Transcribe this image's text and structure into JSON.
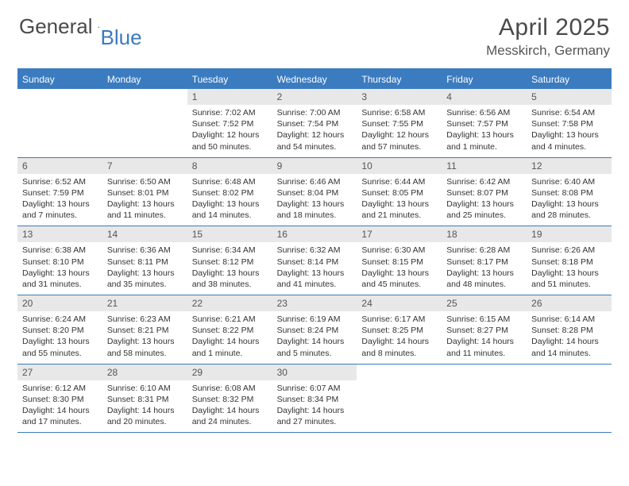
{
  "logo": {
    "text1": "General",
    "text2": "Blue"
  },
  "title": "April 2025",
  "location": "Messkirch, Germany",
  "colors": {
    "brand_blue": "#3b7bbf",
    "header_text": "#4a4a4a",
    "daynum_bg": "#e8e8e8",
    "text": "#333333",
    "bg": "#ffffff"
  },
  "weekdays": [
    "Sunday",
    "Monday",
    "Tuesday",
    "Wednesday",
    "Thursday",
    "Friday",
    "Saturday"
  ],
  "weeks": [
    [
      null,
      null,
      {
        "n": "1",
        "sr": "7:02 AM",
        "ss": "7:52 PM",
        "dl": "12 hours and 50 minutes."
      },
      {
        "n": "2",
        "sr": "7:00 AM",
        "ss": "7:54 PM",
        "dl": "12 hours and 54 minutes."
      },
      {
        "n": "3",
        "sr": "6:58 AM",
        "ss": "7:55 PM",
        "dl": "12 hours and 57 minutes."
      },
      {
        "n": "4",
        "sr": "6:56 AM",
        "ss": "7:57 PM",
        "dl": "13 hours and 1 minute."
      },
      {
        "n": "5",
        "sr": "6:54 AM",
        "ss": "7:58 PM",
        "dl": "13 hours and 4 minutes."
      }
    ],
    [
      {
        "n": "6",
        "sr": "6:52 AM",
        "ss": "7:59 PM",
        "dl": "13 hours and 7 minutes."
      },
      {
        "n": "7",
        "sr": "6:50 AM",
        "ss": "8:01 PM",
        "dl": "13 hours and 11 minutes."
      },
      {
        "n": "8",
        "sr": "6:48 AM",
        "ss": "8:02 PM",
        "dl": "13 hours and 14 minutes."
      },
      {
        "n": "9",
        "sr": "6:46 AM",
        "ss": "8:04 PM",
        "dl": "13 hours and 18 minutes."
      },
      {
        "n": "10",
        "sr": "6:44 AM",
        "ss": "8:05 PM",
        "dl": "13 hours and 21 minutes."
      },
      {
        "n": "11",
        "sr": "6:42 AM",
        "ss": "8:07 PM",
        "dl": "13 hours and 25 minutes."
      },
      {
        "n": "12",
        "sr": "6:40 AM",
        "ss": "8:08 PM",
        "dl": "13 hours and 28 minutes."
      }
    ],
    [
      {
        "n": "13",
        "sr": "6:38 AM",
        "ss": "8:10 PM",
        "dl": "13 hours and 31 minutes."
      },
      {
        "n": "14",
        "sr": "6:36 AM",
        "ss": "8:11 PM",
        "dl": "13 hours and 35 minutes."
      },
      {
        "n": "15",
        "sr": "6:34 AM",
        "ss": "8:12 PM",
        "dl": "13 hours and 38 minutes."
      },
      {
        "n": "16",
        "sr": "6:32 AM",
        "ss": "8:14 PM",
        "dl": "13 hours and 41 minutes."
      },
      {
        "n": "17",
        "sr": "6:30 AM",
        "ss": "8:15 PM",
        "dl": "13 hours and 45 minutes."
      },
      {
        "n": "18",
        "sr": "6:28 AM",
        "ss": "8:17 PM",
        "dl": "13 hours and 48 minutes."
      },
      {
        "n": "19",
        "sr": "6:26 AM",
        "ss": "8:18 PM",
        "dl": "13 hours and 51 minutes."
      }
    ],
    [
      {
        "n": "20",
        "sr": "6:24 AM",
        "ss": "8:20 PM",
        "dl": "13 hours and 55 minutes."
      },
      {
        "n": "21",
        "sr": "6:23 AM",
        "ss": "8:21 PM",
        "dl": "13 hours and 58 minutes."
      },
      {
        "n": "22",
        "sr": "6:21 AM",
        "ss": "8:22 PM",
        "dl": "14 hours and 1 minute."
      },
      {
        "n": "23",
        "sr": "6:19 AM",
        "ss": "8:24 PM",
        "dl": "14 hours and 5 minutes."
      },
      {
        "n": "24",
        "sr": "6:17 AM",
        "ss": "8:25 PM",
        "dl": "14 hours and 8 minutes."
      },
      {
        "n": "25",
        "sr": "6:15 AM",
        "ss": "8:27 PM",
        "dl": "14 hours and 11 minutes."
      },
      {
        "n": "26",
        "sr": "6:14 AM",
        "ss": "8:28 PM",
        "dl": "14 hours and 14 minutes."
      }
    ],
    [
      {
        "n": "27",
        "sr": "6:12 AM",
        "ss": "8:30 PM",
        "dl": "14 hours and 17 minutes."
      },
      {
        "n": "28",
        "sr": "6:10 AM",
        "ss": "8:31 PM",
        "dl": "14 hours and 20 minutes."
      },
      {
        "n": "29",
        "sr": "6:08 AM",
        "ss": "8:32 PM",
        "dl": "14 hours and 24 minutes."
      },
      {
        "n": "30",
        "sr": "6:07 AM",
        "ss": "8:34 PM",
        "dl": "14 hours and 27 minutes."
      },
      null,
      null,
      null
    ]
  ],
  "labels": {
    "sunrise": "Sunrise:",
    "sunset": "Sunset:",
    "daylight": "Daylight:"
  }
}
